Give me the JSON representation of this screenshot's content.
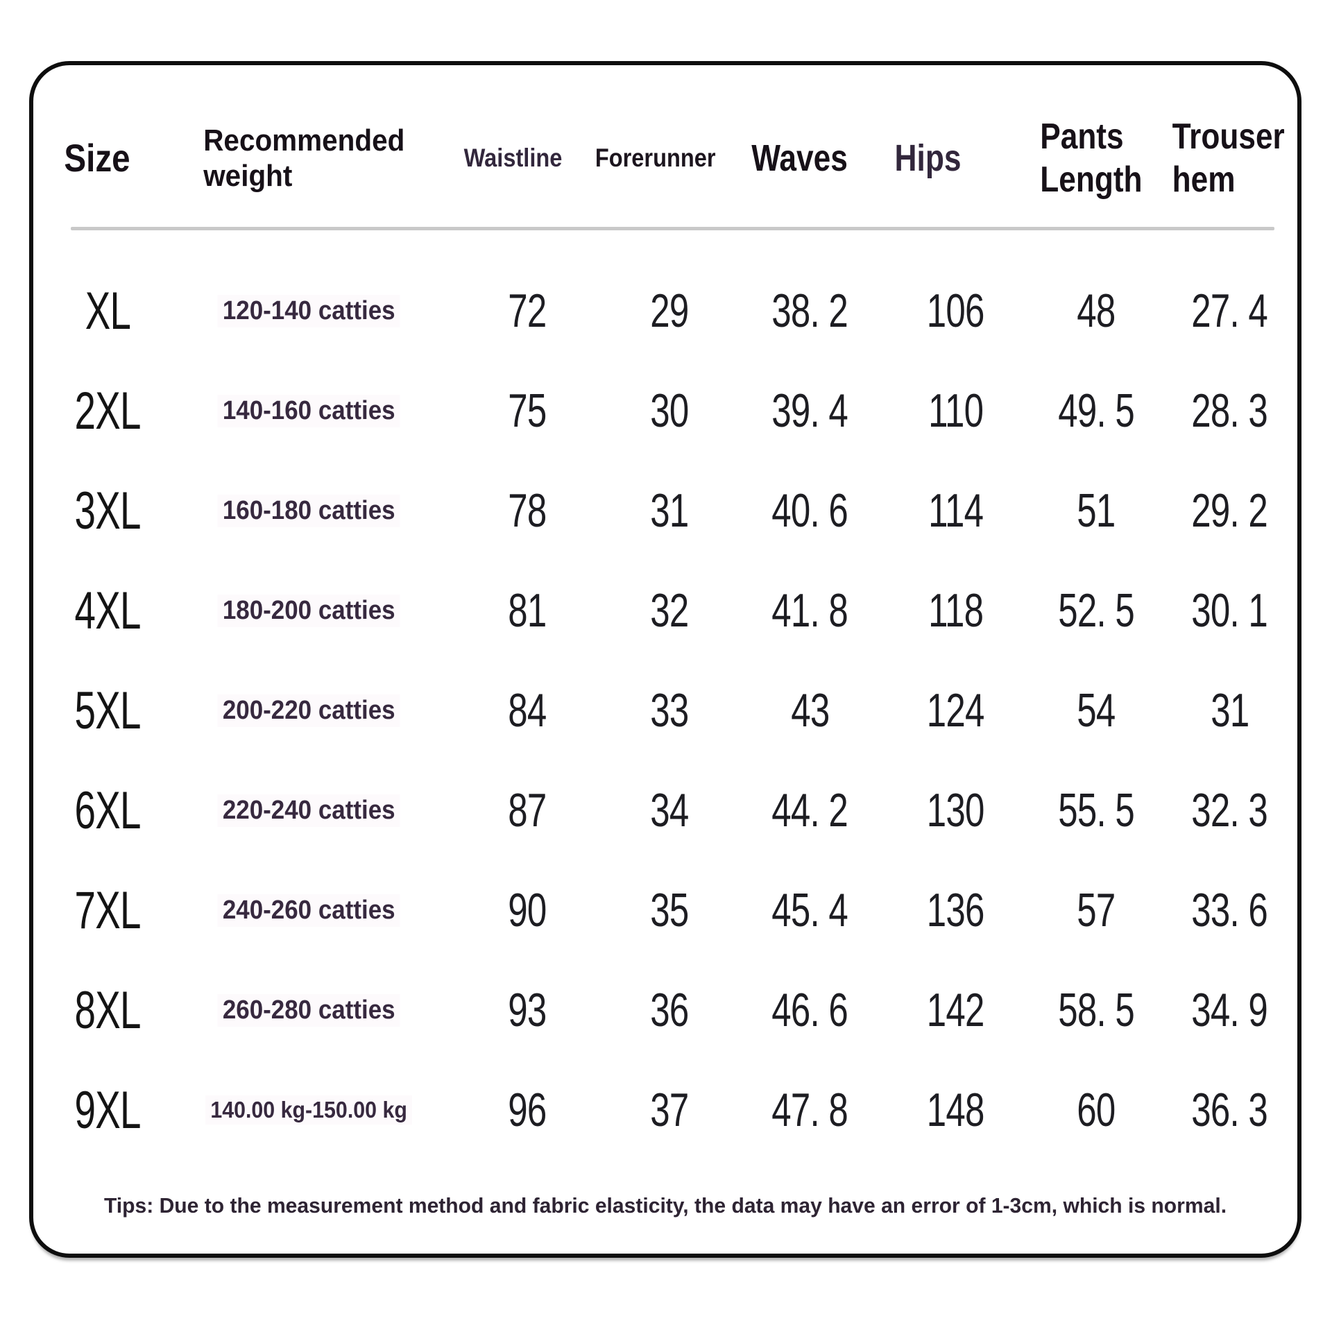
{
  "table": {
    "header": {
      "size": "Size",
      "weight": "Recommended weight",
      "waistline": "Waistline",
      "forerunner": "Forerunner",
      "waves": "Waves",
      "hips": "Hips",
      "pants_length": "Pants Length",
      "trouser_hem": "Trouser hem"
    },
    "rows": [
      {
        "size": "XL",
        "weight": "120-140 catties",
        "waistline": "72",
        "forerunner": "29",
        "waves": "38. 2",
        "hips": "106",
        "pants_length": "48",
        "trouser_hem": "27. 4"
      },
      {
        "size": "2XL",
        "weight": "140-160 catties",
        "waistline": "75",
        "forerunner": "30",
        "waves": "39. 4",
        "hips": "110",
        "pants_length": "49. 5",
        "trouser_hem": "28. 3"
      },
      {
        "size": "3XL",
        "weight": "160-180 catties",
        "waistline": "78",
        "forerunner": "31",
        "waves": "40. 6",
        "hips": "114",
        "pants_length": "51",
        "trouser_hem": "29. 2"
      },
      {
        "size": "4XL",
        "weight": "180-200 catties",
        "waistline": "81",
        "forerunner": "32",
        "waves": "41. 8",
        "hips": "118",
        "pants_length": "52. 5",
        "trouser_hem": "30. 1"
      },
      {
        "size": "5XL",
        "weight": "200-220 catties",
        "waistline": "84",
        "forerunner": "33",
        "waves": "43",
        "hips": "124",
        "pants_length": "54",
        "trouser_hem": "31"
      },
      {
        "size": "6XL",
        "weight": "220-240 catties",
        "waistline": "87",
        "forerunner": "34",
        "waves": "44. 2",
        "hips": "130",
        "pants_length": "55. 5",
        "trouser_hem": "32. 3"
      },
      {
        "size": "7XL",
        "weight": "240-260 catties",
        "waistline": "90",
        "forerunner": "35",
        "waves": "45. 4",
        "hips": "136",
        "pants_length": "57",
        "trouser_hem": "33. 6"
      },
      {
        "size": "8XL",
        "weight": "260-280 catties",
        "waistline": "93",
        "forerunner": "36",
        "waves": "46. 6",
        "hips": "142",
        "pants_length": "58. 5",
        "trouser_hem": "34. 9"
      },
      {
        "size": "9XL",
        "weight": "140.00 kg-150.00 kg",
        "waistline": "96",
        "forerunner": "37",
        "waves": "47. 8",
        "hips": "148",
        "pants_length": "60",
        "trouser_hem": "36. 3"
      }
    ],
    "tips": "Tips: Due to the measurement method and fabric elasticity, the data may have an error of 1-3cm, which is normal."
  },
  "colors": {
    "border": "#0e0e0e",
    "divider": "#c9c9c9",
    "text_dark": "#171118",
    "text_purple": "#37293f",
    "background": "#ffffff"
  }
}
